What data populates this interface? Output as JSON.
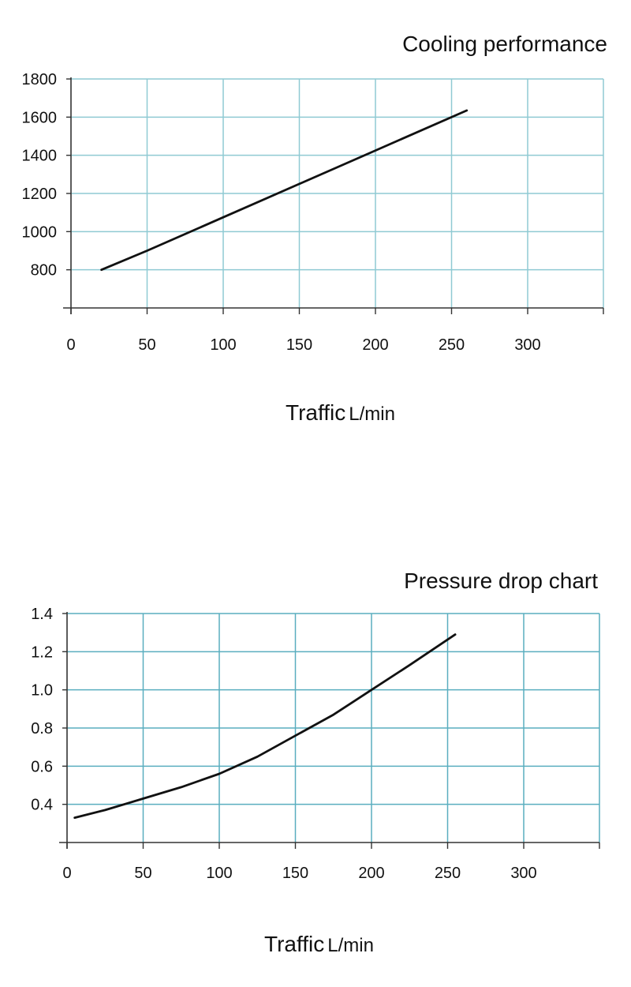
{
  "chart_data": [
    {
      "type": "line",
      "title": "Cooling performance",
      "xlabel": "Traffic",
      "xunit": "L/min",
      "ylabel": "",
      "xlim": [
        0,
        350
      ],
      "ylim": [
        600,
        1800
      ],
      "xticks": [
        0,
        50,
        100,
        150,
        200,
        250,
        300
      ],
      "xtick_labels": [
        "0",
        "50",
        "100",
        "150",
        "200",
        "250",
        "300"
      ],
      "yticks": [
        800,
        1000,
        1200,
        1400,
        1600,
        1800
      ],
      "ytick_labels": [
        "800",
        "1000",
        "1200",
        "1400",
        "1600",
        "1800"
      ],
      "grid": true,
      "grid_color": "#8fcad3",
      "line_color": "#111111",
      "series": [
        {
          "x": [
            20,
            50,
            100,
            150,
            200,
            260
          ],
          "y": [
            800,
            900,
            1075,
            1250,
            1425,
            1635
          ]
        }
      ]
    },
    {
      "type": "line",
      "title": "Pressure drop chart",
      "xlabel": "Traffic",
      "xunit": "L/min",
      "ylabel": "",
      "xlim": [
        0,
        350
      ],
      "ylim": [
        0.2,
        1.4
      ],
      "xticks": [
        0,
        50,
        100,
        150,
        200,
        250,
        300
      ],
      "xtick_labels": [
        "0",
        "50",
        "100",
        "150",
        "200",
        "250",
        "300"
      ],
      "yticks": [
        0.4,
        0.6,
        0.8,
        1.0,
        1.2,
        1.4
      ],
      "ytick_labels": [
        "0.4",
        "0.6",
        "0.8",
        "1.0",
        "1.2",
        "1.4"
      ],
      "grid": true,
      "grid_color": "#5aaebf",
      "line_color": "#111111",
      "series": [
        {
          "x": [
            5,
            25,
            50,
            75,
            100,
            125,
            150,
            175,
            200,
            225,
            255
          ],
          "y": [
            0.33,
            0.37,
            0.43,
            0.49,
            0.56,
            0.65,
            0.76,
            0.87,
            1.0,
            1.13,
            1.29
          ]
        }
      ]
    }
  ]
}
